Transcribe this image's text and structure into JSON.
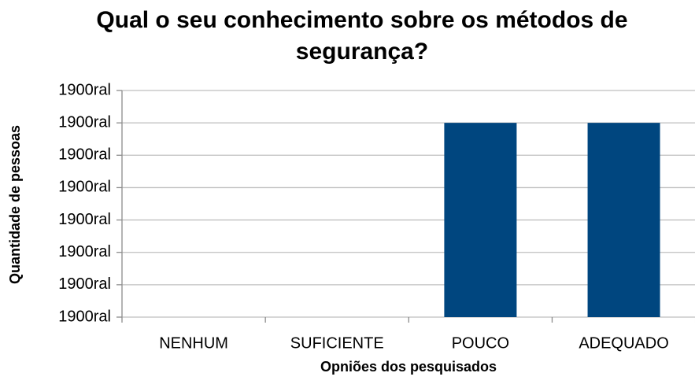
{
  "chart_data": {
    "type": "bar",
    "title": "Qual o seu conhecimento sobre os métodos de segurança?",
    "x_label": "Opniões dos pesquisados",
    "y_label": "Quantidade de pessoas",
    "categories": [
      "NENHUM",
      "SUFICIENTE",
      "POUCO",
      "ADEQUADO"
    ],
    "values": [
      0,
      0,
      6,
      6
    ],
    "color": "#00467f",
    "ylim": [
      0,
      7
    ],
    "yticks": [
      {
        "value": 0,
        "label": "1900ral"
      },
      {
        "value": 1,
        "label": "1900ral"
      },
      {
        "value": 2,
        "label": "1900ral"
      },
      {
        "value": 3,
        "label": "1900ral"
      },
      {
        "value": 4,
        "label": "1900ral"
      },
      {
        "value": 5,
        "label": "1900ral"
      },
      {
        "value": 6,
        "label": "1900ral"
      },
      {
        "value": 7,
        "label": "1900ral"
      }
    ],
    "grid": true
  }
}
